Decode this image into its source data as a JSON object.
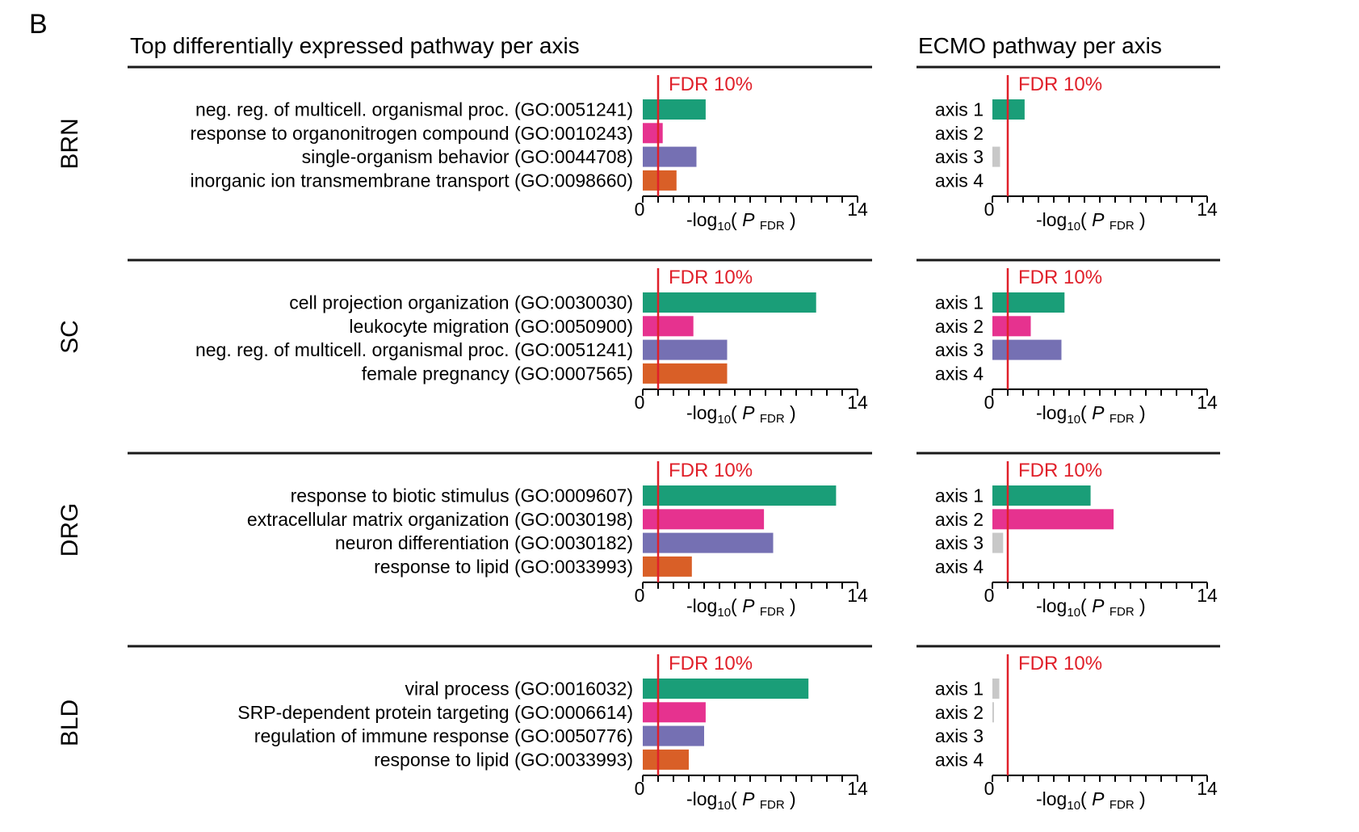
{
  "panel_label": "B",
  "headers": {
    "left": "Top differentially expressed pathway per axis",
    "right": "ECMO pathway per axis"
  },
  "fdr_label": "FDR 10%",
  "axis": {
    "xlabel_prefix": "-log",
    "xlabel_sub": "10",
    "xlabel_open": "( ",
    "xlabel_var": "P",
    "xlabel_var_sub": "FDR",
    "xlabel_close": " )"
  },
  "colors": {
    "axis1": "#1a9e78",
    "axis2": "#e6328f",
    "axis3": "#7570b3",
    "axis4": "#d95f27",
    "nonsignificant": "#c8c8c8",
    "fdr_line": "#e0202a",
    "fdr_text": "#e0202a"
  },
  "chart_data": [
    {
      "type": "bar",
      "orientation": "horizontal",
      "group": "BRN",
      "panel": "Top differentially expressed pathway per axis",
      "categories": [
        "neg. reg. of multicell. organismal proc. (GO:0051241)",
        "response to organonitrogen compound (GO:0010243)",
        "single-organism behavior (GO:0044708)",
        "inorganic ion transmembrane transport (GO:0098660)"
      ],
      "values": [
        4.1,
        1.3,
        3.5,
        2.2
      ],
      "xlim": [
        0,
        14
      ],
      "fdr_threshold": 1.0,
      "tick_labels": [
        "0",
        "14"
      ]
    },
    {
      "type": "bar",
      "orientation": "horizontal",
      "group": "BRN",
      "panel": "ECMO pathway per axis",
      "categories": [
        "axis 1",
        "axis 2",
        "axis 3",
        "axis 4"
      ],
      "values": [
        2.1,
        0,
        0.5,
        0
      ],
      "significant": [
        true,
        false,
        false,
        false
      ],
      "xlim": [
        0,
        14
      ],
      "fdr_threshold": 1.0,
      "tick_labels": [
        "0",
        "14"
      ]
    },
    {
      "type": "bar",
      "orientation": "horizontal",
      "group": "SC",
      "panel": "Top differentially expressed pathway per axis",
      "categories": [
        "cell projection organization (GO:0030030)",
        "leukocyte migration (GO:0050900)",
        "neg. reg. of multicell. organismal proc. (GO:0051241)",
        "female pregnancy (GO:0007565)"
      ],
      "values": [
        11.3,
        3.3,
        5.5,
        5.5
      ],
      "xlim": [
        0,
        14
      ],
      "fdr_threshold": 1.0,
      "tick_labels": [
        "0",
        "14"
      ]
    },
    {
      "type": "bar",
      "orientation": "horizontal",
      "group": "SC",
      "panel": "ECMO pathway per axis",
      "categories": [
        "axis 1",
        "axis 2",
        "axis 3",
        "axis 4"
      ],
      "values": [
        4.7,
        2.5,
        4.5,
        0
      ],
      "significant": [
        true,
        true,
        true,
        false
      ],
      "xlim": [
        0,
        14
      ],
      "fdr_threshold": 1.0,
      "tick_labels": [
        "0",
        "14"
      ]
    },
    {
      "type": "bar",
      "orientation": "horizontal",
      "group": "DRG",
      "panel": "Top differentially expressed pathway per axis",
      "categories": [
        "response to biotic stimulus (GO:0009607)",
        "extracellular matrix organization (GO:0030198)",
        "neuron differentiation (GO:0030182)",
        "response to lipid (GO:0033993)"
      ],
      "values": [
        12.6,
        7.9,
        8.5,
        3.2
      ],
      "xlim": [
        0,
        14
      ],
      "fdr_threshold": 1.0,
      "tick_labels": [
        "0",
        "14"
      ]
    },
    {
      "type": "bar",
      "orientation": "horizontal",
      "group": "DRG",
      "panel": "ECMO pathway per axis",
      "categories": [
        "axis 1",
        "axis 2",
        "axis 3",
        "axis 4"
      ],
      "values": [
        6.4,
        7.9,
        0.7,
        0
      ],
      "significant": [
        true,
        true,
        false,
        false
      ],
      "xlim": [
        0,
        14
      ],
      "fdr_threshold": 1.0,
      "tick_labels": [
        "0",
        "14"
      ]
    },
    {
      "type": "bar",
      "orientation": "horizontal",
      "group": "BLD",
      "panel": "Top differentially expressed pathway per axis",
      "categories": [
        "viral process (GO:0016032)",
        "SRP-dependent protein targeting (GO:0006614)",
        "regulation of immune response (GO:0050776)",
        "response to lipid (GO:0033993)"
      ],
      "values": [
        10.8,
        4.1,
        4.0,
        3.0
      ],
      "xlim": [
        0,
        14
      ],
      "fdr_threshold": 1.0,
      "tick_labels": [
        "0",
        "14"
      ]
    },
    {
      "type": "bar",
      "orientation": "horizontal",
      "group": "BLD",
      "panel": "ECMO pathway per axis",
      "categories": [
        "axis 1",
        "axis 2",
        "axis 3",
        "axis 4"
      ],
      "values": [
        0.45,
        0.1,
        0,
        0
      ],
      "significant": [
        false,
        false,
        false,
        false
      ],
      "xlim": [
        0,
        14
      ],
      "fdr_threshold": 1.0,
      "tick_labels": [
        "0",
        "14"
      ]
    }
  ]
}
